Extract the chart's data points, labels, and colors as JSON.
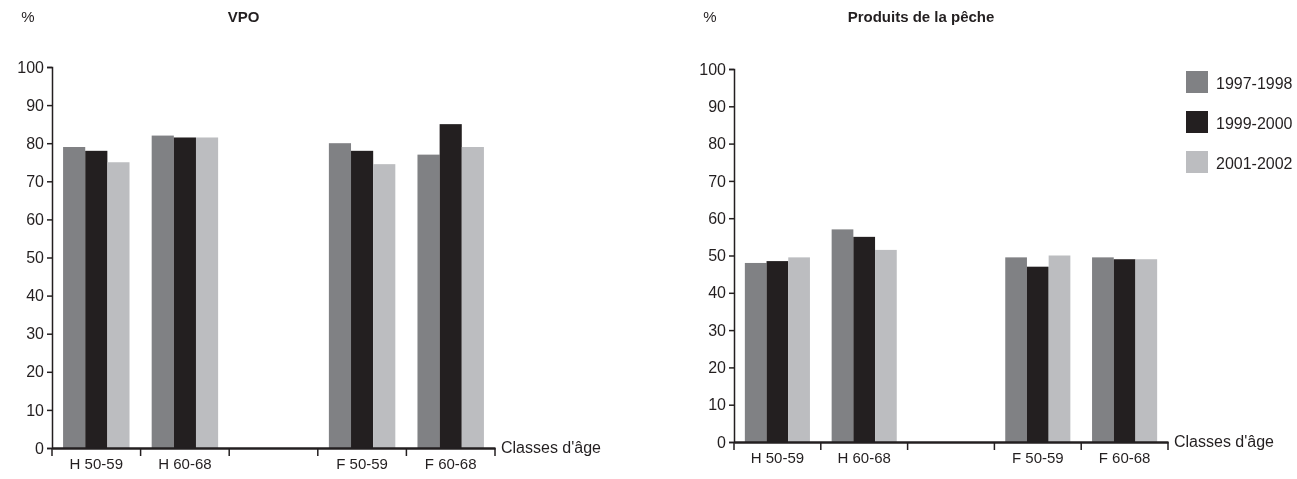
{
  "chart_data": [
    {
      "type": "bar",
      "title": "VPO",
      "ylabel": "%",
      "xlabel": "Classes d'âge",
      "categories": [
        "H 50-59",
        "H 60-68",
        null,
        "F 50-59",
        "F 60-68"
      ],
      "series": [
        {
          "color": "#808184",
          "values": [
            79,
            82,
            0,
            80,
            77
          ]
        },
        {
          "color": "#231f20",
          "values": [
            78,
            81.5,
            0,
            78,
            85
          ]
        },
        {
          "color": "#bcbdc0",
          "values": [
            75,
            81.5,
            0,
            74.5,
            79
          ]
        }
      ],
      "ylim": [
        0,
        100
      ],
      "yticks": [
        0,
        10,
        20,
        30,
        40,
        50,
        60,
        70,
        80,
        90,
        100
      ],
      "grid": false,
      "legend": false
    },
    {
      "type": "bar",
      "title": "Produits de la pêche",
      "ylabel": "%",
      "xlabel": "Classes d'âge",
      "categories": [
        "H 50-59",
        "H 60-68",
        null,
        "F 50-59",
        "F 60-68"
      ],
      "series": [
        {
          "name": "1997-1998",
          "color": "#808184",
          "values": [
            48,
            57,
            0,
            49.5,
            49.5
          ]
        },
        {
          "name": "1999-2000",
          "color": "#231f20",
          "values": [
            48.5,
            55,
            0,
            47,
            49
          ]
        },
        {
          "name": "2001-2002",
          "color": "#bcbdc0",
          "values": [
            49.5,
            51.5,
            0,
            50,
            49
          ]
        }
      ],
      "ylim": [
        0,
        100
      ],
      "yticks": [
        0,
        10,
        20,
        30,
        40,
        50,
        60,
        70,
        80,
        90,
        100
      ],
      "grid": false,
      "legend": "right"
    }
  ]
}
